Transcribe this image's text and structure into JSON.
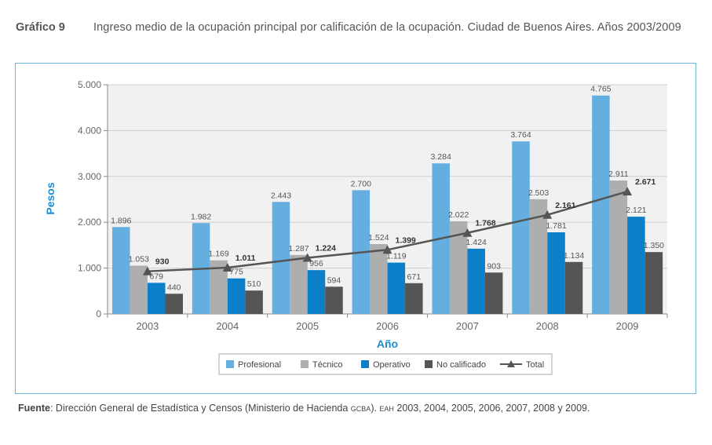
{
  "header": {
    "label": "Gráfico 9",
    "title": "Ingreso medio de la ocupación principal por calificación de la ocupación. Ciudad de Buenos Aires. Años 2003/2009"
  },
  "source": {
    "label": "Fuente",
    "text_before": ": Dirección General de Estadística y Censos (Ministerio de Hacienda ",
    "gcba": "GCBA",
    "text_mid": "). ",
    "eah": "EAH",
    "text_after": " 2003, 2004, 2005, 2006, 2007, 2008 y 2009."
  },
  "colors": {
    "profesional": "#65aee0",
    "tecnico": "#aeaeae",
    "operativo": "#0b7fc7",
    "no_calificado": "#555555",
    "total": "#555555",
    "axis_title": "#1e8ccf",
    "plot_bg": "#f1f1f1",
    "grid": "#cfcfcf"
  },
  "chart_data": {
    "type": "bar",
    "title": "Ingreso medio de la ocupación principal por calificación de la ocupación. Ciudad de Buenos Aires. Años 2003/2009",
    "xlabel": "Año",
    "ylabel": "Pesos",
    "ylim": [
      0,
      5000
    ],
    "yticks": [
      0,
      1000,
      2000,
      3000,
      4000,
      5000
    ],
    "ytick_labels": [
      "0",
      "1.000",
      "2.000",
      "3.000",
      "4.000",
      "5.000"
    ],
    "categories": [
      "2003",
      "2004",
      "2005",
      "2006",
      "2007",
      "2008",
      "2009"
    ],
    "series": [
      {
        "key": "profesional",
        "name": "Profesional",
        "kind": "bar",
        "values": [
          1896,
          1982,
          2443,
          2700,
          3284,
          3764,
          4765
        ],
        "labels": [
          "1.896",
          "1.982",
          "2.443",
          "2.700",
          "3.284",
          "3.764",
          "4.765"
        ]
      },
      {
        "key": "tecnico",
        "name": "Técnico",
        "kind": "bar",
        "values": [
          1053,
          1169,
          1287,
          1524,
          2022,
          2503,
          2911
        ],
        "labels": [
          "1.053",
          "1.169",
          "1.287",
          "1.524",
          "2.022",
          "2.503",
          "2.911"
        ]
      },
      {
        "key": "operativo",
        "name": "Operativo",
        "kind": "bar",
        "values": [
          679,
          775,
          956,
          1119,
          1424,
          1781,
          2121
        ],
        "labels": [
          "679",
          "775",
          "956",
          "1.119",
          "1.424",
          "1.781",
          "2.121"
        ]
      },
      {
        "key": "no_calificado",
        "name": "No calificado",
        "kind": "bar",
        "values": [
          440,
          510,
          594,
          671,
          903,
          1134,
          1350
        ],
        "labels": [
          "440",
          "510",
          "594",
          "671",
          "903",
          "1.134",
          "1.350"
        ]
      },
      {
        "key": "total",
        "name": "Total",
        "kind": "line",
        "values": [
          930,
          1011,
          1224,
          1399,
          1768,
          2161,
          2671
        ],
        "labels": [
          "930",
          "1.011",
          "1.224",
          "1.399",
          "1.768",
          "2.161",
          "2.671"
        ]
      }
    ],
    "legend_position": "bottom-center",
    "grid": true
  }
}
